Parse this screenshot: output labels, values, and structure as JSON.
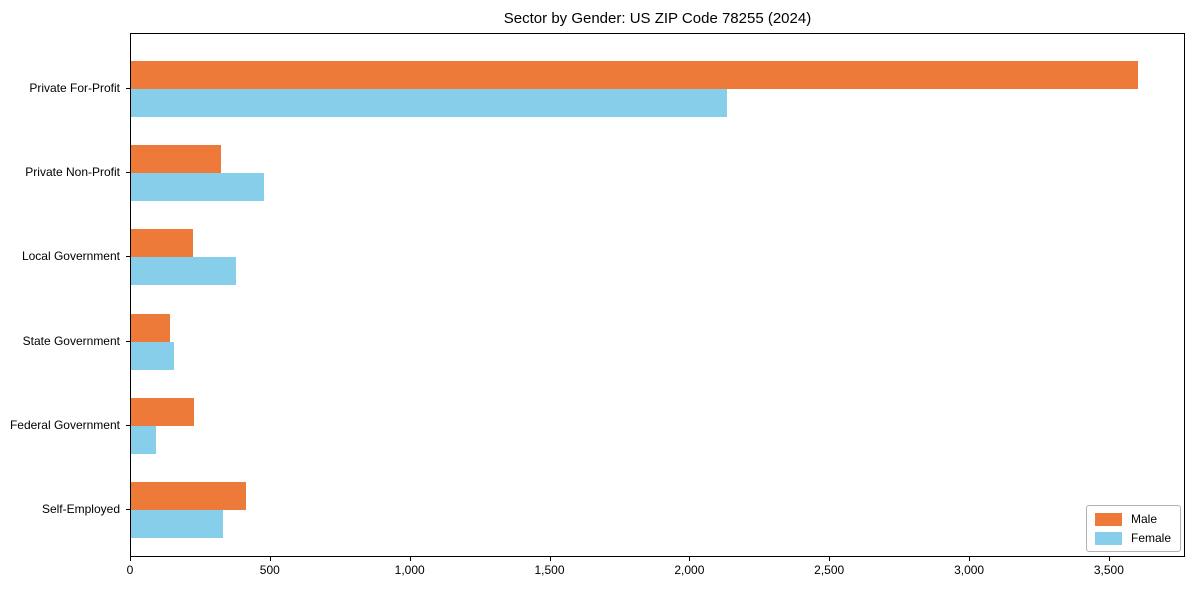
{
  "title": "Sector by Gender: US ZIP Code 78255 (2024)",
  "chart_data": {
    "type": "bar",
    "orientation": "horizontal",
    "title": "Sector by Gender: US ZIP Code 78255 (2024)",
    "categories": [
      "Private For-Profit",
      "Private Non-Profit",
      "Local Government",
      "State Government",
      "Federal Government",
      "Self-Employed"
    ],
    "series": [
      {
        "name": "Male",
        "color": "#ED7A38",
        "values": [
          3600,
          320,
          220,
          140,
          225,
          410
        ]
      },
      {
        "name": "Female",
        "color": "#87CEEB",
        "values": [
          2130,
          475,
          375,
          155,
          90,
          330
        ]
      }
    ],
    "xlim": [
      0,
      3772
    ],
    "xticks": [
      0,
      500,
      1000,
      1500,
      2000,
      2500,
      3000,
      3500
    ],
    "xtick_labels": [
      "0",
      "500",
      "1,000",
      "1,500",
      "2,000",
      "2,500",
      "3,000",
      "3,500"
    ],
    "grid": false,
    "legend_position": "lower right"
  },
  "legend": {
    "items": [
      {
        "label": "Male",
        "color": "#ED7A38"
      },
      {
        "label": "Female",
        "color": "#87CEEB"
      }
    ]
  }
}
